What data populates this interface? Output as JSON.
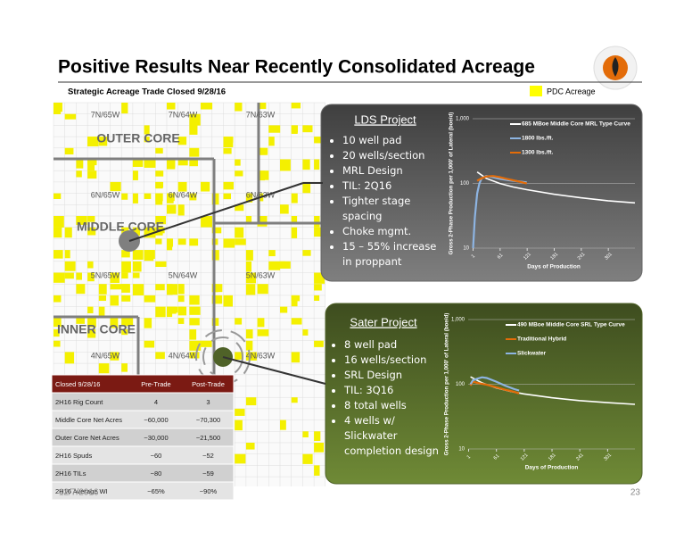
{
  "header": {
    "title": "Positive Results Near Recently Consolidated Acreage",
    "subtitle": "Strategic Acreage Trade Closed 9/28/16",
    "legend_label": "PDC Acreage"
  },
  "map": {
    "townships": [
      "7N/65W",
      "7N/64W",
      "7N/63W",
      "6N/65W",
      "6N/64W",
      "6N/63W",
      "5N/65W",
      "5N/64W",
      "5N/63W",
      "4N/65W",
      "4N/64W",
      "4N/63W"
    ],
    "regions": [
      "OUTER CORE",
      "MIDDLE CORE",
      "INNER CORE"
    ]
  },
  "lds_project": {
    "title": "LDS Project",
    "bullets": [
      "10 well pad",
      "20 wells/section",
      "MRL Design",
      "TIL: 2Q16",
      "Tighter stage spacing",
      "Choke mgmt.",
      "15 – 55% increase in proppant"
    ],
    "chart": {
      "type": "line",
      "y_label": "Gross 2-Phase Production per 1,000' of Lateral (boe/d)",
      "x_label": "Days of Production",
      "log_scale": true,
      "xlim": [
        0,
        360
      ],
      "xticks": [
        1,
        61,
        121,
        181,
        241,
        301
      ],
      "ylim": [
        10,
        1000
      ],
      "yticks": [
        {
          "value": 1000,
          "label": "1,000"
        },
        100,
        10
      ],
      "series": [
        {
          "name": "685 MBoe Middle Core MRL Type Curve",
          "color": "#ffffff",
          "x": [
            10,
            30,
            60,
            90,
            120,
            180,
            240,
            300,
            360
          ],
          "values": [
            150,
            120,
            100,
            88,
            80,
            68,
            60,
            54,
            50
          ]
        },
        {
          "name": "1800 lbs./ft.",
          "color": "#8db4e2",
          "x": [
            1,
            5,
            10,
            15,
            20,
            30,
            45,
            60,
            80,
            100,
            120
          ],
          "values": [
            10,
            30,
            70,
            100,
            120,
            130,
            125,
            118,
            112,
            108,
            104
          ]
        },
        {
          "name": "1300 lbs./ft.",
          "color": "#e36c09",
          "x": [
            10,
            20,
            30,
            45,
            60,
            75,
            90,
            105,
            120
          ],
          "values": [
            110,
            120,
            128,
            130,
            125,
            118,
            112,
            106,
            100
          ]
        }
      ]
    }
  },
  "sater_project": {
    "title": "Sater Project",
    "bullets": [
      "8 well pad",
      "16 wells/section",
      "SRL Design",
      "TIL: 3Q16",
      "8 total wells",
      "4 wells w/ Slickwater completion design"
    ],
    "chart": {
      "type": "line",
      "y_label": "Gross 2-Phase Production per 1,000' of Lateral (boe/d)",
      "x_label": "Days of Production",
      "log_scale": true,
      "xlim": [
        0,
        360
      ],
      "xticks": [
        1,
        61,
        121,
        181,
        241,
        301
      ],
      "ylim": [
        10,
        1000
      ],
      "yticks": [
        {
          "value": 1000,
          "label": "1,000"
        },
        100,
        10
      ],
      "series": [
        {
          "name": "490 MBoe Middle Core SRL Type Curve",
          "color": "#ffffff",
          "x": [
            5,
            30,
            60,
            90,
            120,
            180,
            240,
            300,
            360
          ],
          "values": [
            130,
            105,
            88,
            78,
            71,
            62,
            56,
            52,
            49
          ]
        },
        {
          "name": "Traditional Hybrid",
          "color": "#e36c09",
          "x": [
            5,
            10,
            20,
            40,
            60,
            80,
            100,
            110
          ],
          "values": [
            95,
            110,
            105,
            98,
            90,
            82,
            76,
            72
          ]
        },
        {
          "name": "Slickwater",
          "color": "#8db4e2",
          "x": [
            5,
            10,
            20,
            30,
            40,
            60,
            80,
            100,
            110
          ],
          "values": [
            100,
            115,
            122,
            128,
            125,
            110,
            95,
            84,
            80
          ]
        }
      ]
    }
  },
  "table": {
    "header": [
      "Closed 9/28/16",
      "Pre-Trade",
      "Post-Trade"
    ],
    "rows": [
      [
        "2H16 Rig Count",
        "4",
        "3"
      ],
      [
        "Middle Core Net Acres",
        "~60,000",
        "~70,300"
      ],
      [
        "Outer Core Net Acres",
        "~30,000",
        "~21,500"
      ],
      [
        "2H16 Spuds",
        "~60",
        "~52"
      ],
      [
        "2H16 TILs",
        "~80",
        "~59"
      ],
      [
        "2H16 Average WI",
        "~65%",
        "~90%"
      ]
    ]
  },
  "footer": {
    "date": "12/7/2016",
    "page": "23"
  }
}
